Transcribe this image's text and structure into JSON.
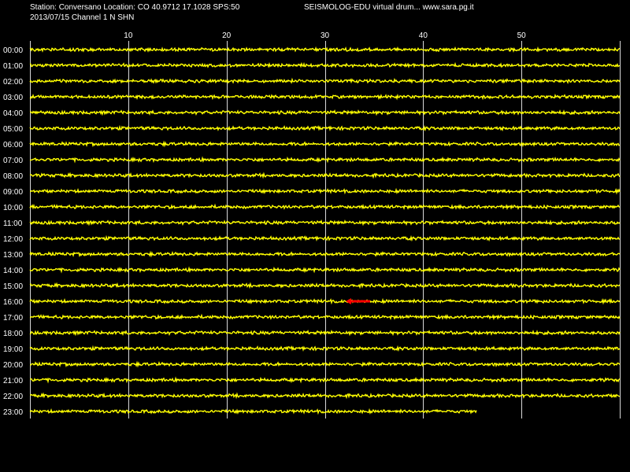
{
  "header": {
    "station_info": "Station: Conversano Location: CO 40.9712 17.1028 SPS:50",
    "date_channel": "2013/07/15  Channel 1 N SHN",
    "title": "SEISMOLOG-EDU virtual drum... www.sara.pg.it"
  },
  "colors": {
    "background": "#000000",
    "trace": "#ffff00",
    "event_marker": "#ff0000",
    "grid": "#ffffff",
    "text": "#ffffff"
  },
  "chart_data": {
    "type": "line",
    "xlabel": "",
    "ylabel": "",
    "x_unit_note": "",
    "xlim": [
      0,
      60
    ],
    "x_ticks": [
      10,
      20,
      30,
      40,
      50
    ],
    "grid": true,
    "rows": [
      "00:00",
      "01:00",
      "02:00",
      "03:00",
      "04:00",
      "05:00",
      "06:00",
      "07:00",
      "08:00",
      "09:00",
      "10:00",
      "11:00",
      "12:00",
      "13:00",
      "14:00",
      "15:00",
      "16:00",
      "17:00",
      "18:00",
      "19:00",
      "20:00",
      "21:00",
      "22:00",
      "23:00"
    ],
    "row_extent_minutes": [
      60,
      60,
      60,
      60,
      60,
      60,
      60,
      60,
      60,
      60,
      60,
      60,
      60,
      60,
      60,
      60,
      60,
      60,
      60,
      60,
      60,
      60,
      60,
      45.5
    ],
    "event_marker": {
      "row": "16:00",
      "start_minute": 32.2,
      "end_minute": 34.6
    }
  }
}
